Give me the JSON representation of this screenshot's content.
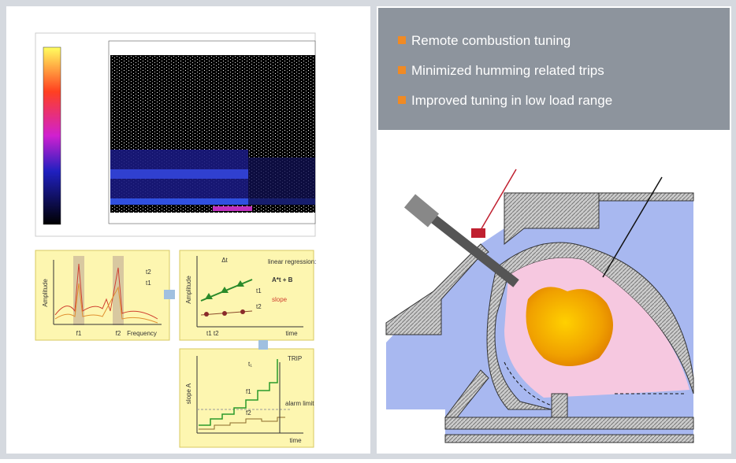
{
  "bullets": [
    "Remote combustion tuning",
    "Minimized humming related trips",
    "Improved tuning in low load range"
  ],
  "spectrum_panel": {
    "y_label": "Amplitude",
    "x_label": "Frequency",
    "peaks": [
      "f1",
      "f2"
    ],
    "curves": [
      "t2",
      "t1"
    ]
  },
  "regression_panel": {
    "y_label": "Amplitude",
    "x_label": "time",
    "interval": "Δt",
    "note": "linear regression:",
    "formula": "A*t + B",
    "slope": "slope",
    "curves": [
      "t1",
      "t2"
    ],
    "x_ticks": "t1 t2"
  },
  "trend_panel": {
    "y_label": "slope A",
    "x_label": "time",
    "trip": "TRIP",
    "alarm": "alarm limit",
    "interval": "t₁",
    "curves": [
      "f1",
      "f2"
    ]
  }
}
